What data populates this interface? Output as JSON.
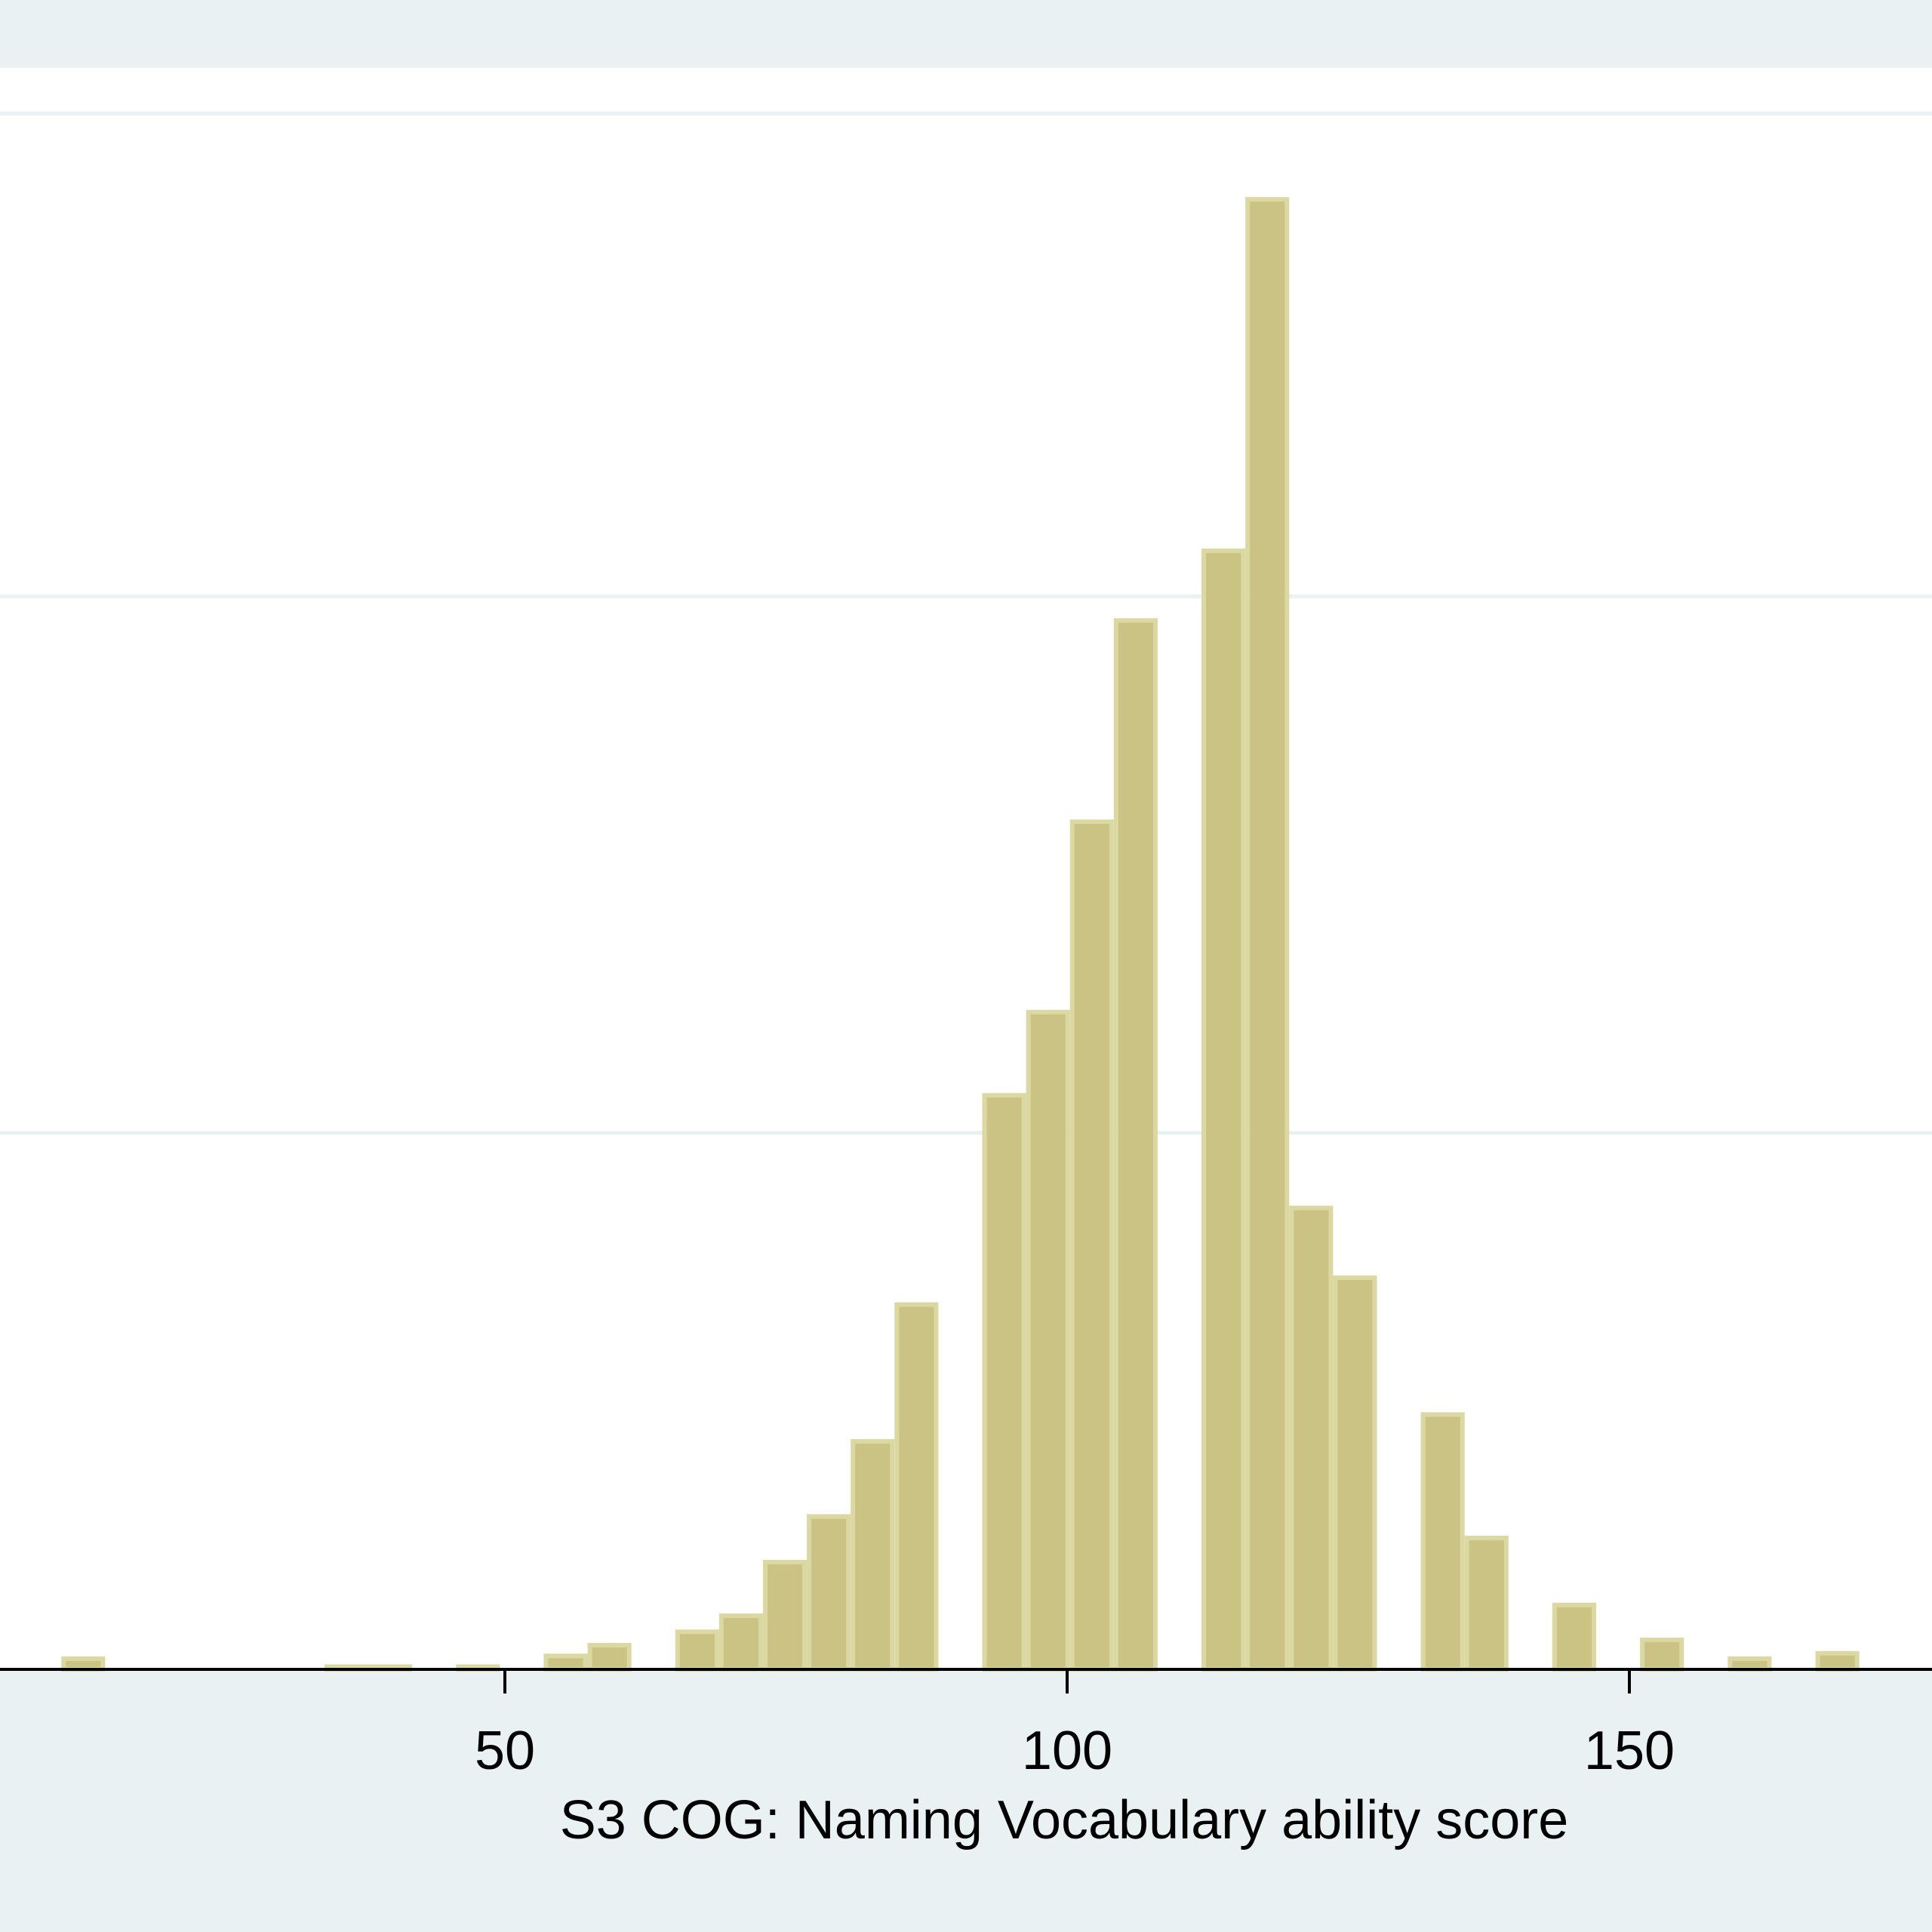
{
  "chart_data": {
    "type": "bar",
    "title": "",
    "xlabel": "S3 COG: Naming Vocabulary ability score",
    "ylabel": "",
    "x_ticks": [
      50,
      100,
      150
    ],
    "x_tick_labels": [
      "50",
      "100",
      "150"
    ],
    "xlim": [
      5,
      177
    ],
    "ylim": [
      0,
      0.0597
    ],
    "y_gridlines": [
      0.02,
      0.04,
      0.058
    ],
    "grid": true,
    "bin_width": 3.9,
    "bins": [
      {
        "x": 12.5,
        "value": 0.0004
      },
      {
        "x": 35.9,
        "value": 0.0001
      },
      {
        "x": 39.8,
        "value": 0.0001
      },
      {
        "x": 47.6,
        "value": 0.0001
      },
      {
        "x": 55.4,
        "value": 0.0005
      },
      {
        "x": 59.3,
        "value": 0.0009
      },
      {
        "x": 67.1,
        "value": 0.0014
      },
      {
        "x": 71.0,
        "value": 0.002
      },
      {
        "x": 74.9,
        "value": 0.004
      },
      {
        "x": 78.8,
        "value": 0.0057
      },
      {
        "x": 82.7,
        "value": 0.0085
      },
      {
        "x": 86.6,
        "value": 0.0136
      },
      {
        "x": 94.4,
        "value": 0.0214
      },
      {
        "x": 98.3,
        "value": 0.0245
      },
      {
        "x": 102.2,
        "value": 0.0316
      },
      {
        "x": 106.1,
        "value": 0.0391
      },
      {
        "x": 113.9,
        "value": 0.0417
      },
      {
        "x": 117.8,
        "value": 0.0548
      },
      {
        "x": 121.7,
        "value": 0.0172
      },
      {
        "x": 125.6,
        "value": 0.0146
      },
      {
        "x": 133.4,
        "value": 0.0095
      },
      {
        "x": 137.3,
        "value": 0.0049
      },
      {
        "x": 145.1,
        "value": 0.0024
      },
      {
        "x": 152.9,
        "value": 0.0011
      },
      {
        "x": 160.7,
        "value": 0.0004
      },
      {
        "x": 168.5,
        "value": 0.0006
      }
    ],
    "colors": {
      "bar_fill": "#cbc383",
      "bar_stroke": "#dcd8a2",
      "plot_background": "#ffffff",
      "outer_background": "#eaf1f3",
      "gridline": "#eaf1f3",
      "axis": "#000000"
    }
  }
}
